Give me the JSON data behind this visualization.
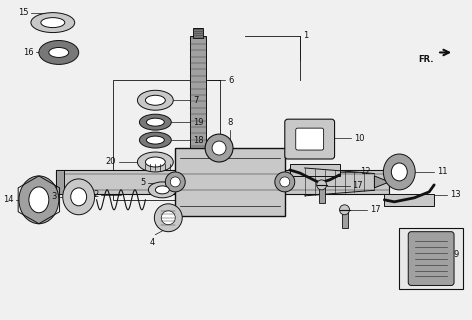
{
  "bg_color": "#f0f0f0",
  "line_color": "#111111",
  "fig_width": 4.72,
  "fig_height": 3.2,
  "dpi": 100
}
